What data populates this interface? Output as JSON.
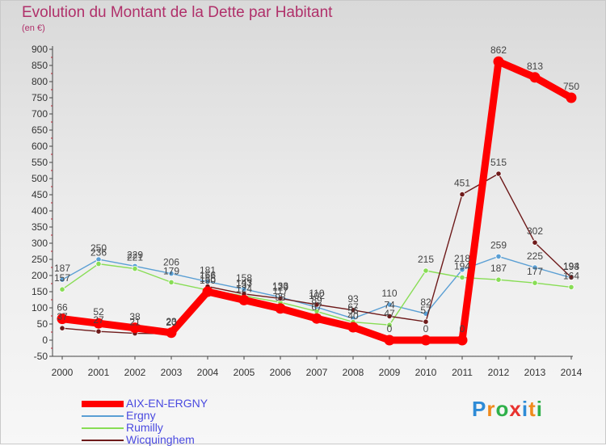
{
  "title": "Evolution du Montant de la Dette par Habitant",
  "unit": "(en €)",
  "logo": {
    "letters": [
      "P",
      "r",
      "o",
      "x",
      "i",
      "t",
      "i"
    ],
    "colors": [
      "#2e8bd6",
      "#f08a1c",
      "#2fb04a",
      "#e8322f",
      "#2e8bd6",
      "#f08a1c",
      "#2fb04a"
    ]
  },
  "chart_data": {
    "type": "line",
    "title": "Evolution du Montant de la Dette par Habitant",
    "ylabel": "(en €)",
    "x": [
      "2000",
      "2001",
      "2002",
      "2003",
      "2004",
      "2005",
      "2006",
      "2007",
      "2008",
      "2009",
      "2010",
      "2011",
      "2012",
      "2013",
      "2014"
    ],
    "yticks": [
      "-50",
      "0",
      "50",
      "100",
      "150",
      "200",
      "250",
      "300",
      "350",
      "400",
      "450",
      "500",
      "550",
      "600",
      "650",
      "700",
      "750",
      "800",
      "850",
      "900"
    ],
    "ylim": [
      -50,
      900
    ],
    "grid": false,
    "legend_position": "bottom-left",
    "series": [
      {
        "name": "AIX-EN-ERGNY",
        "color": "#ff0000",
        "values": [
          66,
          52,
          38,
          23,
          150,
          124,
          98,
          67,
          40,
          0,
          0,
          0,
          862,
          813,
          750
        ],
        "labels": [
          "66",
          "52",
          "38",
          "23",
          "150",
          "124",
          "98",
          "67",
          "40",
          "0",
          "0",
          "0",
          "862",
          "813",
          "750"
        ]
      },
      {
        "name": "Ergny",
        "color": "#5a9fd4",
        "values": [
          187,
          250,
          229,
          206,
          181,
          158,
          133,
          102,
          67,
          110,
          82,
          218,
          259,
          225,
          193
        ],
        "labels": [
          "187",
          "250",
          "229",
          "206",
          "181",
          "158",
          "133",
          "102",
          "67",
          "110",
          "82",
          "218",
          "259",
          "225",
          "193"
        ]
      },
      {
        "name": "Rumilly",
        "color": "#88dd55",
        "values": [
          157,
          236,
          221,
          179,
          155,
          137,
          117,
          89,
          56,
          47,
          215,
          194,
          187,
          177,
          164
        ],
        "labels": [
          "157",
          "236",
          "221",
          "179",
          "155",
          "137",
          "117",
          "89",
          "56",
          "47",
          "215",
          "194",
          "187",
          "177",
          "164"
        ]
      },
      {
        "name": "Wicquinghem",
        "color": "#6e1a1a",
        "values": [
          37,
          27,
          21,
          20,
          166,
          143,
          129,
          110,
          93,
          74,
          57,
          451,
          515,
          302,
          194
        ],
        "labels": [
          "37",
          "27",
          "21",
          "20",
          "166",
          "143",
          "129",
          "110",
          "93",
          "74",
          "57",
          "451",
          "515",
          "302",
          "194"
        ]
      }
    ]
  }
}
